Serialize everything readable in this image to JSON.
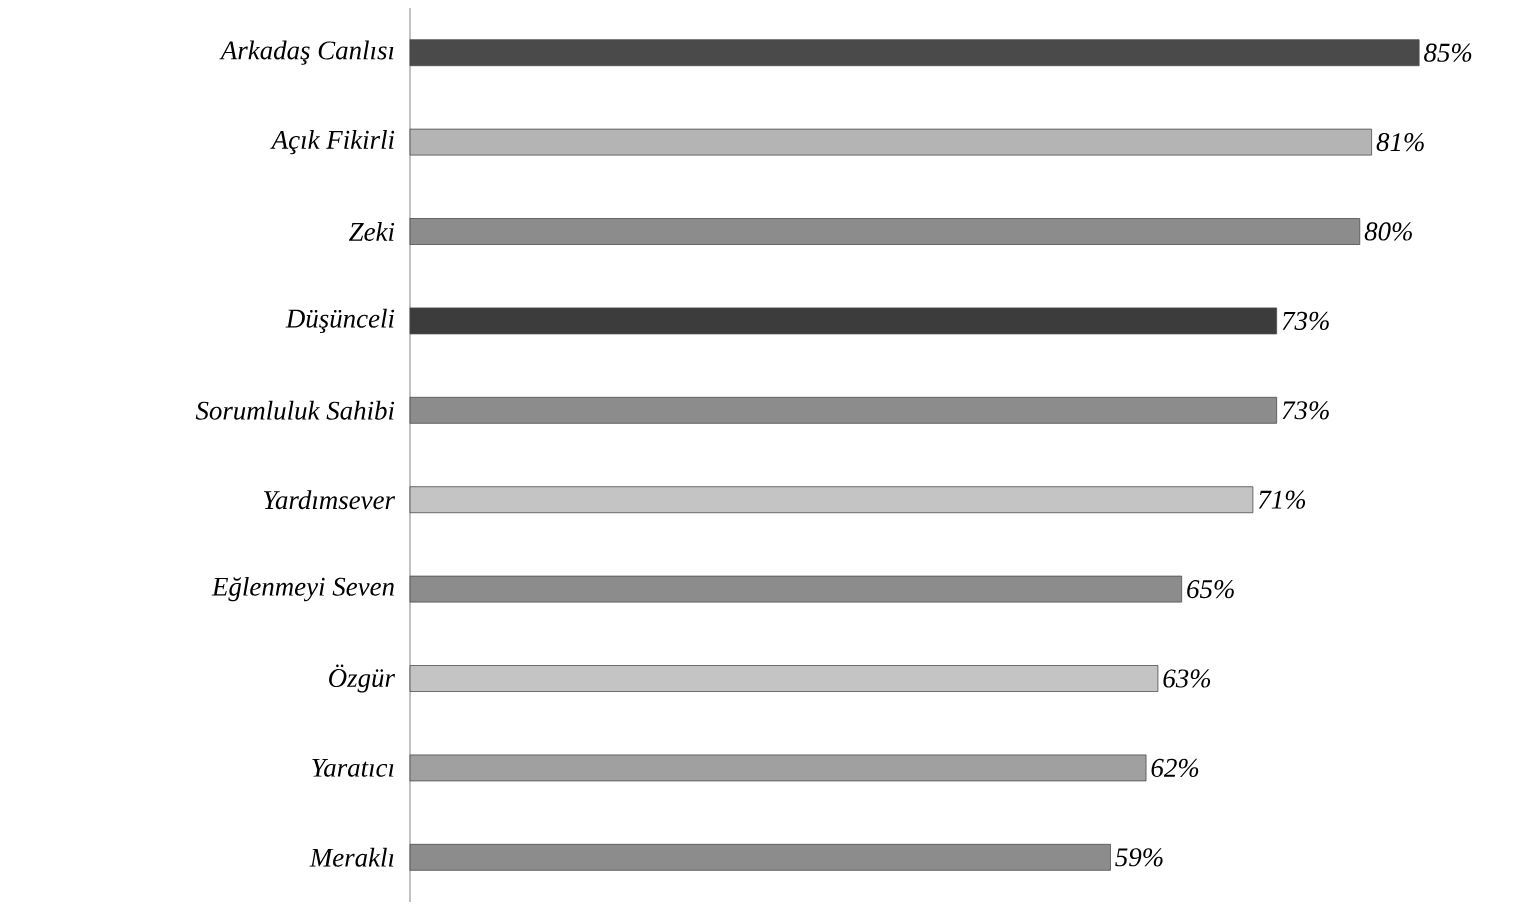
{
  "chart_data": {
    "type": "bar",
    "orientation": "horizontal",
    "categories": [
      "Arkadaş Canlısı",
      "Açık Fikirli",
      "Zeki",
      "Düşünceli",
      "Sorumluluk Sahibi",
      "Yardımsever",
      "Eğlenmeyi Seven",
      "Özgür",
      "Yaratıcı",
      "Meraklı"
    ],
    "values": [
      85,
      81,
      80,
      73,
      73,
      71,
      65,
      63,
      62,
      59
    ],
    "value_labels": [
      "85%",
      "81%",
      "80%",
      "73%",
      "73%",
      "71%",
      "65%",
      "63%",
      "62%",
      "59%"
    ],
    "colors": [
      "#4a4a4a",
      "#b4b4b4",
      "#8c8c8c",
      "#3c3c3c",
      "#8c8c8c",
      "#c4c4c4",
      "#8c8c8c",
      "#c4c4c4",
      "#a0a0a0",
      "#8c8c8c"
    ]
  }
}
